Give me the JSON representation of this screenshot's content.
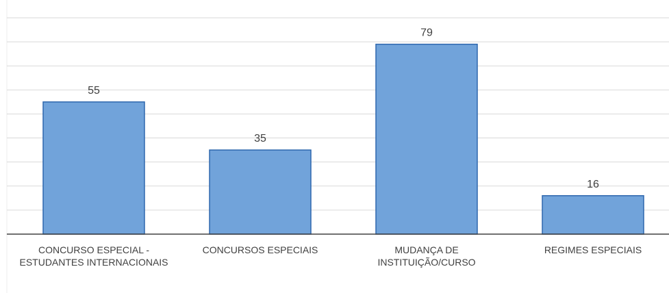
{
  "chart_data": {
    "type": "bar",
    "categories": [
      "CONCURSO ESPECIAL - ESTUDANTES INTERNACIONAIS",
      "CONCURSOS ESPECIAIS",
      "MUDANÇA DE INSTITUIÇÃO/CURSO",
      "REGIMES ESPECIAIS"
    ],
    "values": [
      55,
      35,
      79,
      16
    ],
    "color": "#71a3da",
    "ylim": [
      0,
      90
    ],
    "yticks": [
      0,
      10,
      20,
      30,
      40,
      50,
      60,
      70,
      80,
      90
    ],
    "grid": true
  }
}
